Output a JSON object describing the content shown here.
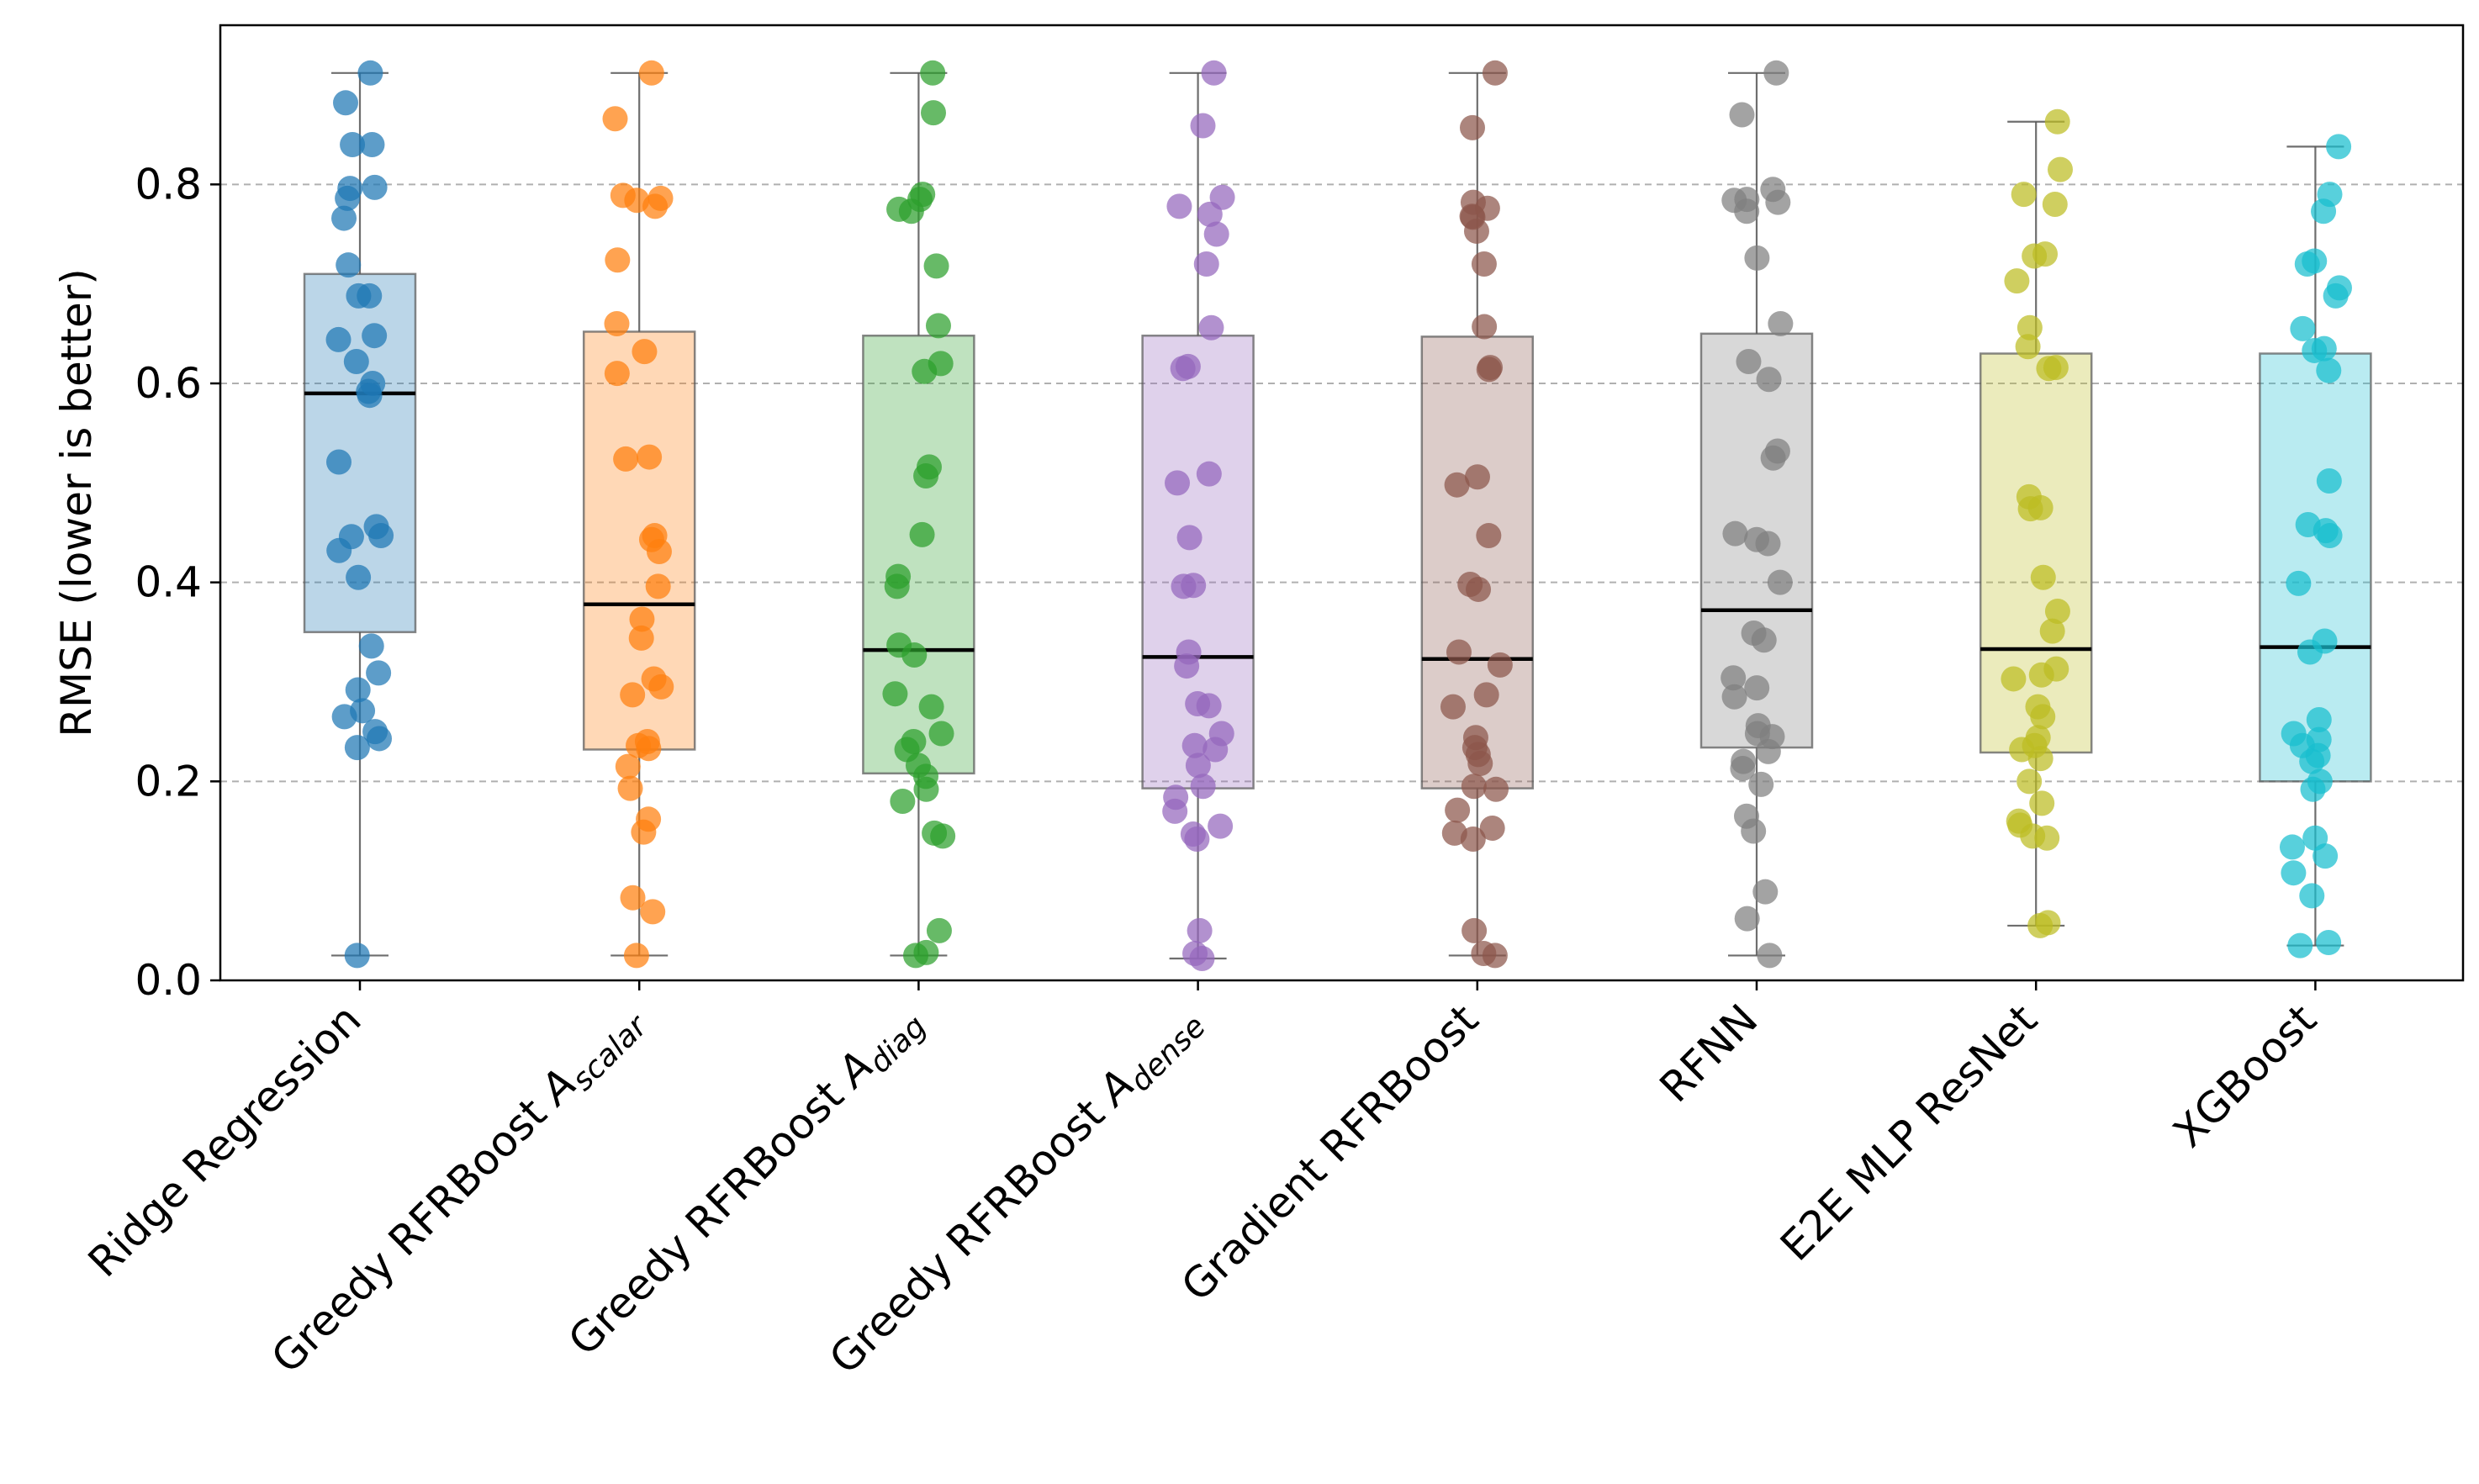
{
  "chart_data": {
    "type": "box",
    "ylabel": "RMSE (lower is better)",
    "ylim": [
      0.0,
      0.96
    ],
    "yticks": [
      "0.0",
      "0.2",
      "0.4",
      "0.6",
      "0.8"
    ],
    "grid": "y-dashed",
    "legend": "none",
    "categories": [
      {
        "label": "Ridge Regression",
        "base": "Ridge Regression",
        "sub": ""
      },
      {
        "label": "Greedy RFRBoost A_scalar",
        "base": "Greedy RFRBoost A",
        "sub": "scalar"
      },
      {
        "label": "Greedy RFRBoost A_diag",
        "base": "Greedy RFRBoost A",
        "sub": "diag"
      },
      {
        "label": "Greedy RFRBoost A_dense",
        "base": "Greedy RFRBoost A",
        "sub": "dense"
      },
      {
        "label": "Gradient RFRBoost",
        "base": "Gradient RFRBoost",
        "sub": ""
      },
      {
        "label": "RFNN",
        "base": "RFNN",
        "sub": ""
      },
      {
        "label": "E2E MLP ResNet",
        "base": "E2E MLP ResNet",
        "sub": ""
      },
      {
        "label": "XGBoost",
        "base": "XGBoost",
        "sub": ""
      }
    ],
    "series": [
      {
        "color": "#1f77b4",
        "box": {
          "whislo": 0.025,
          "q1": 0.35,
          "median": 0.59,
          "q3": 0.71,
          "whishi": 0.912
        },
        "points": [
          0.912,
          0.882,
          0.84,
          0.84,
          0.797,
          0.796,
          0.786,
          0.766,
          0.719,
          0.688,
          0.688,
          0.648,
          0.644,
          0.622,
          0.6,
          0.592,
          0.588,
          0.521,
          0.456,
          0.447,
          0.446,
          0.432,
          0.405,
          0.336,
          0.309,
          0.292,
          0.271,
          0.265,
          0.25,
          0.243,
          0.234,
          0.025
        ]
      },
      {
        "color": "#ff7f0e",
        "box": {
          "whislo": 0.025,
          "q1": 0.232,
          "median": 0.378,
          "q3": 0.652,
          "whishi": 0.912
        },
        "points": [
          0.912,
          0.866,
          0.789,
          0.786,
          0.784,
          0.778,
          0.724,
          0.66,
          0.632,
          0.61,
          0.526,
          0.524,
          0.447,
          0.443,
          0.431,
          0.396,
          0.363,
          0.344,
          0.303,
          0.295,
          0.287,
          0.24,
          0.236,
          0.233,
          0.215,
          0.193,
          0.162,
          0.149,
          0.083,
          0.069,
          0.025
        ]
      },
      {
        "color": "#2ca02c",
        "box": {
          "whislo": 0.025,
          "q1": 0.208,
          "median": 0.332,
          "q3": 0.648,
          "whishi": 0.912
        },
        "points": [
          0.912,
          0.872,
          0.79,
          0.785,
          0.775,
          0.773,
          0.718,
          0.658,
          0.62,
          0.612,
          0.516,
          0.507,
          0.448,
          0.406,
          0.396,
          0.337,
          0.327,
          0.288,
          0.275,
          0.248,
          0.24,
          0.232,
          0.216,
          0.205,
          0.192,
          0.18,
          0.148,
          0.145,
          0.05,
          0.028,
          0.025
        ]
      },
      {
        "color": "#9467bd",
        "box": {
          "whislo": 0.022,
          "q1": 0.193,
          "median": 0.325,
          "q3": 0.648,
          "whishi": 0.912
        },
        "points": [
          0.912,
          0.859,
          0.787,
          0.778,
          0.77,
          0.75,
          0.72,
          0.656,
          0.617,
          0.615,
          0.509,
          0.5,
          0.445,
          0.397,
          0.396,
          0.33,
          0.316,
          0.278,
          0.276,
          0.248,
          0.236,
          0.232,
          0.216,
          0.195,
          0.184,
          0.17,
          0.155,
          0.147,
          0.142,
          0.05,
          0.027,
          0.022
        ]
      },
      {
        "color": "#8c564b",
        "box": {
          "whislo": 0.025,
          "q1": 0.193,
          "median": 0.323,
          "q3": 0.647,
          "whishi": 0.912
        },
        "points": [
          0.912,
          0.857,
          0.782,
          0.776,
          0.768,
          0.767,
          0.753,
          0.72,
          0.657,
          0.616,
          0.614,
          0.506,
          0.498,
          0.447,
          0.398,
          0.393,
          0.33,
          0.317,
          0.287,
          0.275,
          0.244,
          0.234,
          0.227,
          0.218,
          0.195,
          0.192,
          0.171,
          0.153,
          0.148,
          0.142,
          0.05,
          0.027,
          0.025
        ]
      },
      {
        "color": "#7f7f7f",
        "box": {
          "whislo": 0.025,
          "q1": 0.234,
          "median": 0.372,
          "q3": 0.65,
          "whishi": 0.912
        },
        "points": [
          0.912,
          0.87,
          0.795,
          0.785,
          0.784,
          0.782,
          0.773,
          0.726,
          0.66,
          0.622,
          0.604,
          0.532,
          0.525,
          0.449,
          0.443,
          0.439,
          0.4,
          0.349,
          0.342,
          0.304,
          0.294,
          0.285,
          0.256,
          0.248,
          0.245,
          0.23,
          0.22,
          0.213,
          0.197,
          0.165,
          0.15,
          0.089,
          0.062,
          0.025
        ]
      },
      {
        "color": "#bcbd22",
        "box": {
          "whislo": 0.055,
          "q1": 0.229,
          "median": 0.333,
          "q3": 0.63,
          "whishi": 0.863
        },
        "points": [
          0.863,
          0.815,
          0.79,
          0.78,
          0.73,
          0.728,
          0.703,
          0.656,
          0.637,
          0.616,
          0.615,
          0.486,
          0.475,
          0.474,
          0.405,
          0.371,
          0.351,
          0.313,
          0.307,
          0.303,
          0.275,
          0.265,
          0.244,
          0.236,
          0.232,
          0.223,
          0.2,
          0.178,
          0.16,
          0.156,
          0.145,
          0.143,
          0.058,
          0.055
        ]
      },
      {
        "color": "#17becf",
        "box": {
          "whislo": 0.035,
          "q1": 0.2,
          "median": 0.335,
          "q3": 0.63,
          "whishi": 0.838
        },
        "points": [
          0.838,
          0.79,
          0.773,
          0.723,
          0.72,
          0.696,
          0.688,
          0.655,
          0.635,
          0.633,
          0.613,
          0.502,
          0.458,
          0.452,
          0.447,
          0.399,
          0.341,
          0.33,
          0.262,
          0.248,
          0.242,
          0.236,
          0.226,
          0.22,
          0.2,
          0.192,
          0.143,
          0.134,
          0.125,
          0.108,
          0.085,
          0.038,
          0.035
        ]
      }
    ]
  }
}
